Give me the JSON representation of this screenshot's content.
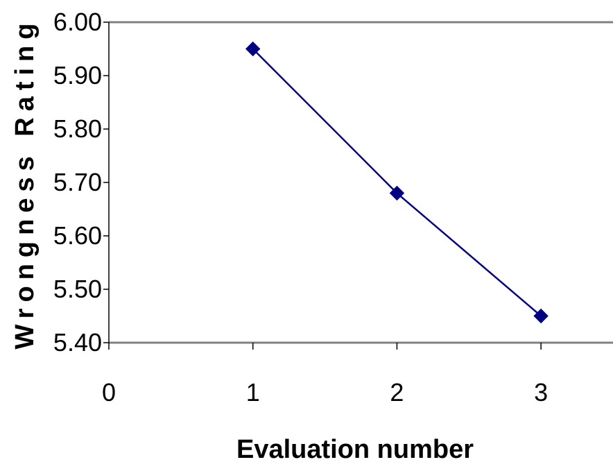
{
  "chart_data": {
    "type": "line",
    "title": "",
    "xlabel": "Evaluation number",
    "ylabel": "Wrongness Rating",
    "x": [
      1,
      2,
      3
    ],
    "series": [
      {
        "values": [
          5.95,
          5.68,
          5.45
        ]
      }
    ],
    "xlim": [
      0,
      3.5
    ],
    "ylim": [
      5.4,
      6.0
    ],
    "xticks": [
      0,
      1,
      2,
      3
    ],
    "xtick_labels": [
      "0",
      "1",
      "2",
      "3"
    ],
    "yticks": [
      5.4,
      5.5,
      5.6,
      5.7,
      5.8,
      5.9,
      6.0
    ],
    "ytick_labels": [
      "5.40",
      "5.50",
      "5.60",
      "5.70",
      "5.80",
      "5.90",
      "6.00"
    ],
    "grid": false,
    "legend": "none",
    "marker": "diamond",
    "line_color": "#000080",
    "marker_color": "#000080",
    "frame_color": "#808080"
  }
}
